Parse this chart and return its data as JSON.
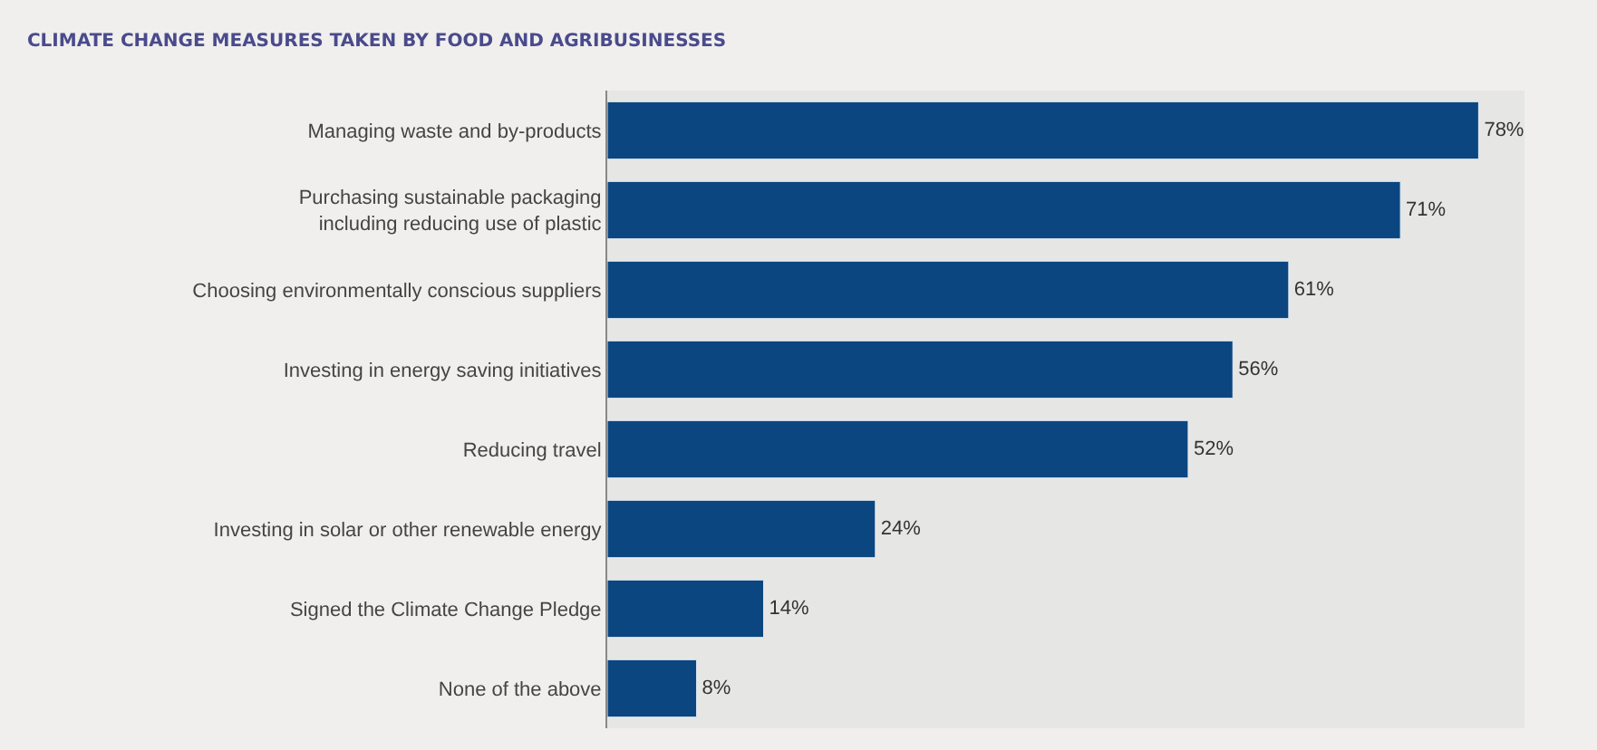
{
  "chart_data": {
    "type": "bar",
    "orientation": "horizontal",
    "title": "CLIMATE CHANGE MEASURES TAKEN BY FOOD AND AGRIBUSINESSES",
    "categories": [
      "Managing waste and by-products",
      "Purchasing sustainable packaging\nincluding reducing use of plastic",
      "Choosing environmentally conscious suppliers",
      "Investing in energy saving initiatives",
      "Reducing travel",
      "Investing in solar or other renewable energy",
      "Signed the Climate Change Pledge",
      "None of the above"
    ],
    "values": [
      78,
      71,
      61,
      56,
      52,
      24,
      14,
      8
    ],
    "value_labels": [
      "78%",
      "71%",
      "61%",
      "56%",
      "52%",
      "24%",
      "14%",
      "8%"
    ],
    "color": "#0b4680",
    "grid": false,
    "legend": false
  }
}
